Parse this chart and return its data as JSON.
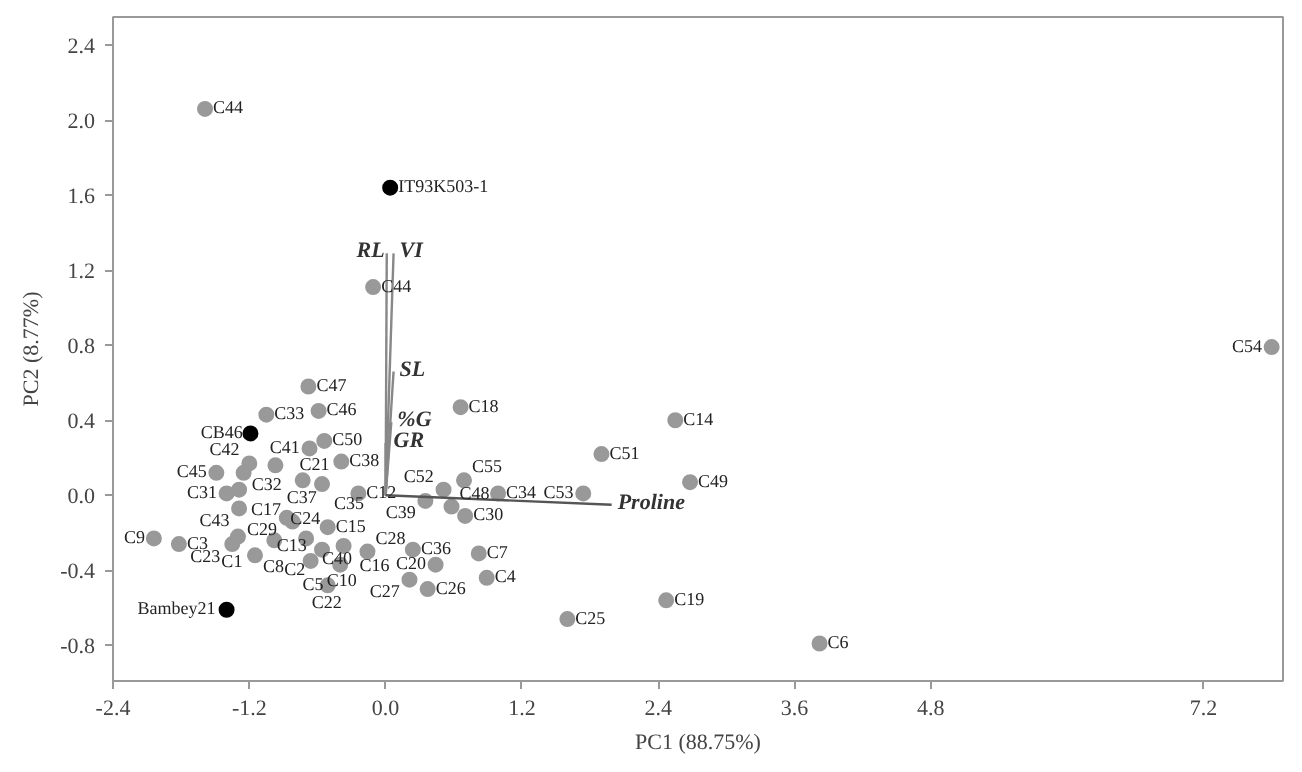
{
  "chart_data": {
    "type": "scatter",
    "xlabel": "PC1 (88.75%)",
    "ylabel": "PC2 (8.77%)",
    "xlim": [
      -2.4,
      7.9
    ],
    "ylim": [
      -0.99,
      2.55
    ],
    "xticks": [
      -2.4,
      -1.2,
      {
        "value": 0,
        "label": "0.0"
      },
      1.2,
      2.4,
      3.6,
      4.8,
      7.2
    ],
    "yticks": [
      -0.8,
      -0.4,
      {
        "value": 0,
        "label": "0.0"
      },
      0.4,
      0.8,
      1.2,
      1.6,
      {
        "value": 2,
        "label": "2.0"
      },
      2.4
    ],
    "grid": false,
    "legend": false,
    "marker": "circle",
    "series": [
      {
        "color": "#999999",
        "x": [
          -1.59,
          -0.11,
          -0.68,
          -1.05,
          -0.59,
          -0.67,
          -0.54,
          -1.2,
          -1.25,
          -1.49,
          -0.97,
          -0.39,
          -1.4,
          -1.29,
          -0.73,
          -0.56,
          -0.24,
          -1.29,
          -0.87,
          -0.82,
          -0.51,
          -2.04,
          -1.82,
          -1.35,
          -1.15,
          -1.3,
          -0.98,
          -0.7,
          -0.56,
          -0.66,
          -0.37,
          -0.4,
          -0.51,
          -0.16,
          0.24,
          0.21,
          0.37,
          0.44,
          0.82,
          0.89,
          0.35,
          0.58,
          0.7,
          0.51,
          0.69,
          0.66,
          0.99,
          1.74,
          1.9,
          2.55,
          2.68,
          2.47,
          1.6,
          3.82,
          7.8
        ],
        "values": [
          2.06,
          1.11,
          0.58,
          0.43,
          0.45,
          0.25,
          0.29,
          0.17,
          0.12,
          0.12,
          0.16,
          0.18,
          0.01,
          0.03,
          0.08,
          0.06,
          0.01,
          -0.07,
          -0.12,
          -0.14,
          -0.17,
          -0.23,
          -0.26,
          -0.26,
          -0.32,
          -0.22,
          -0.24,
          -0.23,
          -0.29,
          -0.35,
          -0.27,
          -0.37,
          -0.48,
          -0.3,
          -0.29,
          -0.45,
          -0.5,
          -0.37,
          -0.31,
          -0.44,
          -0.03,
          -0.06,
          -0.11,
          0.03,
          0.08,
          0.47,
          0.01,
          0.01,
          0.22,
          0.4,
          0.07,
          -0.56,
          -0.66,
          -0.79,
          0.79
        ]
      },
      {
        "color": "#000000",
        "x": [
          0.04,
          -1.19,
          -1.4
        ],
        "values": [
          1.64,
          0.33,
          -0.61
        ]
      },
      {
        "type": "line",
        "marker": "none",
        "name": "RL",
        "color": "#888888",
        "x": [
          0,
          0.01
        ],
        "values": [
          0,
          1.29
        ]
      },
      {
        "type": "line",
        "marker": "none",
        "name": "VI",
        "color": "#888888",
        "x": [
          0,
          0.07
        ],
        "values": [
          0,
          1.29
        ]
      },
      {
        "type": "line",
        "marker": "none",
        "name": "SL",
        "color": "#888888",
        "x": [
          0,
          0.07
        ],
        "values": [
          0,
          0.66
        ]
      },
      {
        "type": "line",
        "marker": "none",
        "name": "%G",
        "color": "#888888",
        "x": [
          0,
          0.05
        ],
        "values": [
          0,
          0.39
        ]
      },
      {
        "type": "line",
        "marker": "none",
        "name": "GR",
        "color": "#888888",
        "x": [
          0,
          0.0
        ],
        "values": [
          0,
          0.28
        ]
      },
      {
        "type": "line",
        "marker": "none",
        "name": "Proline",
        "color": "#555555",
        "x": [
          0,
          1.99
        ],
        "values": [
          0,
          -0.05
        ]
      }
    ],
    "annotations": [
      {
        "text": "C44",
        "x": -1.59,
        "y": 2.06
      },
      {
        "text": "C44",
        "x": -0.11,
        "y": 1.11
      },
      {
        "text": "C47",
        "x": -0.68,
        "y": 0.58
      },
      {
        "text": "C33",
        "x": -1.05,
        "y": 0.43
      },
      {
        "text": "C46",
        "x": -0.59,
        "y": 0.45
      },
      {
        "text": "C41",
        "x": -0.67,
        "y": 0.25
      },
      {
        "text": "C50",
        "x": -0.54,
        "y": 0.29
      },
      {
        "text": "C42",
        "x": -1.2,
        "y": 0.17
      },
      {
        "text": "C32",
        "x": -1.25,
        "y": 0.12
      },
      {
        "text": "C45",
        "x": -1.49,
        "y": 0.12
      },
      {
        "text": "C21",
        "x": -0.97,
        "y": 0.16
      },
      {
        "text": "C38",
        "x": -0.39,
        "y": 0.18
      },
      {
        "text": "C31",
        "x": -1.4,
        "y": 0.01
      },
      {
        "text": "C17",
        "x": -1.29,
        "y": 0.03
      },
      {
        "text": "C37",
        "x": -0.73,
        "y": 0.08
      },
      {
        "text": "C35",
        "x": -0.56,
        "y": 0.06
      },
      {
        "text": "C12",
        "x": -0.24,
        "y": 0.01
      },
      {
        "text": "C43",
        "x": -1.29,
        "y": -0.07
      },
      {
        "text": "C29",
        "x": -0.87,
        "y": -0.12
      },
      {
        "text": "C13",
        "x": -0.82,
        "y": -0.14
      },
      {
        "text": "C15",
        "x": -0.51,
        "y": -0.17
      },
      {
        "text": "C9",
        "x": -2.04,
        "y": -0.23
      },
      {
        "text": "C3",
        "x": -1.82,
        "y": -0.26
      },
      {
        "text": "C1",
        "x": -1.35,
        "y": -0.26
      },
      {
        "text": "C8",
        "x": -1.15,
        "y": -0.32
      },
      {
        "text": "C23",
        "x": -1.3,
        "y": -0.22
      },
      {
        "text": "C24",
        "x": -0.98,
        "y": -0.24
      },
      {
        "text": "C40",
        "x": -0.7,
        "y": -0.23
      },
      {
        "text": "C2",
        "x": -0.56,
        "y": -0.29
      },
      {
        "text": "C10",
        "x": -0.66,
        "y": -0.35
      },
      {
        "text": "C16",
        "x": -0.37,
        "y": -0.27
      },
      {
        "text": "C5",
        "x": -0.4,
        "y": -0.37
      },
      {
        "text": "C22",
        "x": -0.51,
        "y": -0.48
      },
      {
        "text": "C28",
        "x": -0.16,
        "y": -0.3
      },
      {
        "text": "C36",
        "x": 0.24,
        "y": -0.29
      },
      {
        "text": "C27",
        "x": 0.21,
        "y": -0.45
      },
      {
        "text": "C26",
        "x": 0.37,
        "y": -0.5
      },
      {
        "text": "C20",
        "x": 0.44,
        "y": -0.37
      },
      {
        "text": "C7",
        "x": 0.82,
        "y": -0.31
      },
      {
        "text": "C4",
        "x": 0.89,
        "y": -0.44
      },
      {
        "text": "C39",
        "x": 0.35,
        "y": -0.03
      },
      {
        "text": "C48",
        "x": 0.58,
        "y": -0.06
      },
      {
        "text": "C30",
        "x": 0.7,
        "y": -0.11
      },
      {
        "text": "C52",
        "x": 0.51,
        "y": 0.03
      },
      {
        "text": "C55",
        "x": 0.69,
        "y": 0.08
      },
      {
        "text": "C18",
        "x": 0.66,
        "y": 0.47
      },
      {
        "text": "C34",
        "x": 0.99,
        "y": 0.01
      },
      {
        "text": "C53",
        "x": 1.74,
        "y": 0.01
      },
      {
        "text": "C51",
        "x": 1.9,
        "y": 0.22
      },
      {
        "text": "C14",
        "x": 2.55,
        "y": 0.4
      },
      {
        "text": "C49",
        "x": 2.68,
        "y": 0.07
      },
      {
        "text": "C19",
        "x": 2.47,
        "y": -0.56
      },
      {
        "text": "C25",
        "x": 1.6,
        "y": -0.66
      },
      {
        "text": "C6",
        "x": 3.82,
        "y": -0.79
      },
      {
        "text": "C54",
        "x": 7.8,
        "y": 0.79
      },
      {
        "text": "IT93K503-1",
        "x": 0.04,
        "y": 1.64
      },
      {
        "text": "CB46",
        "x": -1.19,
        "y": 0.33
      },
      {
        "text": "Bambey21",
        "x": -1.4,
        "y": -0.61
      }
    ]
  }
}
